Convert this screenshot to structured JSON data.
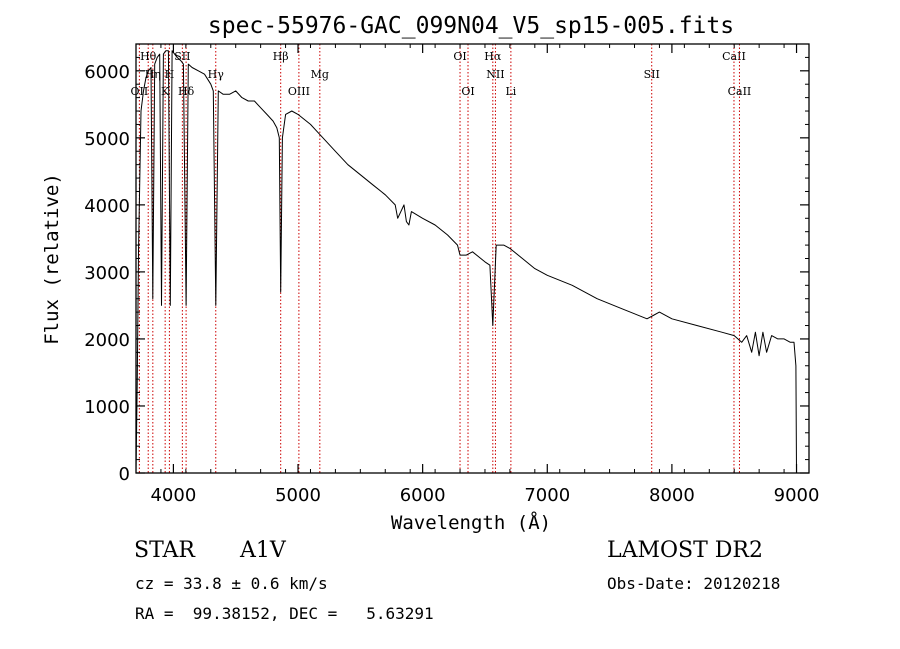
{
  "colors": {
    "spectrum": "#000000",
    "line_marker": "#cc0000",
    "axes": "#000000"
  },
  "info": {
    "class_label": "STAR",
    "subclass": "A1V",
    "redshift": "cz = 33.8 ± 0.6 km/s",
    "coords": "RA =  99.38152, DEC =   5.63291",
    "survey": "LAMOST DR2",
    "obs_date": "Obs-Date: 20120218"
  },
  "chart_data": {
    "type": "line",
    "title": "spec-55976-GAC_099N04_V5_sp15-005.fits",
    "xlabel": "Wavelength (Å)",
    "ylabel": "Flux (relative)",
    "xlim": [
      3700,
      9100
    ],
    "ylim": [
      0,
      6400
    ],
    "x_ticks": [
      4000,
      5000,
      6000,
      7000,
      8000,
      9000
    ],
    "y_ticks": [
      0,
      1000,
      2000,
      3000,
      4000,
      5000,
      6000
    ],
    "series": [
      {
        "x": [
          3700,
          3710,
          3720,
          3740,
          3760,
          3780,
          3800,
          3820,
          3835,
          3850,
          3870,
          3890,
          3905,
          3920,
          3940,
          3960,
          3975,
          3990,
          4010,
          4030,
          4060,
          4080,
          4102,
          4120,
          4150,
          4200,
          4250,
          4300,
          4320,
          4340,
          4360,
          4400,
          4450,
          4500,
          4550,
          4600,
          4650,
          4700,
          4750,
          4800,
          4830,
          4850,
          4861,
          4875,
          4900,
          4950,
          5000,
          5100,
          5200,
          5300,
          5400,
          5500,
          5600,
          5700,
          5780,
          5800,
          5850,
          5870,
          5890,
          5910,
          6000,
          6100,
          6200,
          6280,
          6300,
          6350,
          6400,
          6500,
          6540,
          6563,
          6590,
          6650,
          6700,
          6800,
          6900,
          7000,
          7200,
          7400,
          7600,
          7800,
          7850,
          7900,
          8000,
          8200,
          8400,
          8500,
          8560,
          8600,
          8640,
          8670,
          8700,
          8730,
          8760,
          8800,
          8850,
          8900,
          8950,
          8980,
          8995,
          9000
        ],
        "y": [
          0,
          1300,
          3300,
          5400,
          5700,
          5900,
          6000,
          6050,
          2600,
          6100,
          6200,
          6250,
          2500,
          6250,
          6300,
          6300,
          2500,
          6300,
          6250,
          6200,
          6150,
          6100,
          2500,
          6100,
          6050,
          6000,
          5950,
          5800,
          5700,
          2500,
          5700,
          5650,
          5650,
          5700,
          5600,
          5550,
          5550,
          5450,
          5350,
          5250,
          5150,
          5000,
          2700,
          5000,
          5350,
          5400,
          5350,
          5200,
          5000,
          4800,
          4600,
          4450,
          4300,
          4150,
          4000,
          3800,
          4000,
          3750,
          3700,
          3900,
          3800,
          3700,
          3550,
          3400,
          3250,
          3250,
          3300,
          3150,
          3100,
          2200,
          3400,
          3400,
          3350,
          3200,
          3050,
          2950,
          2800,
          2600,
          2450,
          2300,
          2350,
          2400,
          2300,
          2200,
          2100,
          2050,
          1950,
          2050,
          1800,
          2100,
          1750,
          2100,
          1800,
          2050,
          2000,
          2000,
          1950,
          1950,
          1600,
          0
        ]
      }
    ],
    "line_markers": [
      {
        "label": "Hθ",
        "wavelength": 3798,
        "row": 1
      },
      {
        "label": "OII",
        "wavelength": 3727,
        "row": 3
      },
      {
        "label": "Hη",
        "wavelength": 3835,
        "row": 2
      },
      {
        "label": "K",
        "wavelength": 3934,
        "row": 3
      },
      {
        "label": "H",
        "wavelength": 3968,
        "row": 2
      },
      {
        "label": "SII",
        "wavelength": 4072,
        "row": 1
      },
      {
        "label": "Hδ",
        "wavelength": 4102,
        "row": 3
      },
      {
        "label": "Hγ",
        "wavelength": 4340,
        "row": 2
      },
      {
        "label": "Hβ",
        "wavelength": 4861,
        "row": 1
      },
      {
        "label": "OIII",
        "wavelength": 5007,
        "row": 3
      },
      {
        "label": "Mg",
        "wavelength": 5175,
        "row": 2
      },
      {
        "label": "OI",
        "wavelength": 6300,
        "row": 1
      },
      {
        "label": "OI",
        "wavelength": 6364,
        "row": 3
      },
      {
        "label": "Hα",
        "wavelength": 6563,
        "row": 1
      },
      {
        "label": "NII",
        "wavelength": 6584,
        "row": 2
      },
      {
        "label": "Li",
        "wavelength": 6708,
        "row": 3
      },
      {
        "label": "SII",
        "wavelength": 7838,
        "row": 2
      },
      {
        "label": "CaII",
        "wavelength": 8498,
        "row": 1
      },
      {
        "label": "CaII",
        "wavelength": 8542,
        "row": 3
      }
    ]
  }
}
